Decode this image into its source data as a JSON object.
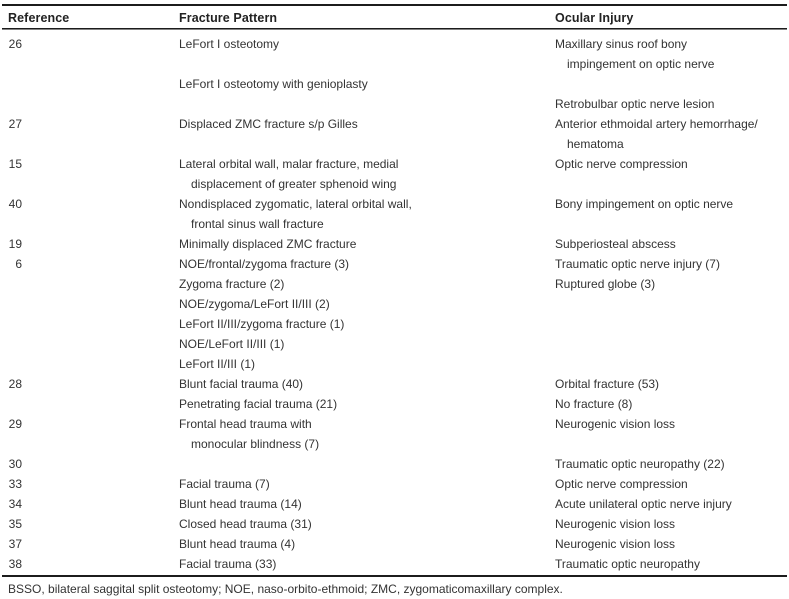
{
  "colors": {
    "background": "#ffffff",
    "text": "#333333",
    "rule": "#1c1c1c"
  },
  "table": {
    "columns": [
      "Reference",
      "Fracture Pattern",
      "Ocular Injury"
    ],
    "rows": [
      {
        "ref": "26",
        "fracture": "LeFort I osteotomy",
        "fracture_indent": false,
        "ocular": "Maxillary sinus roof bony",
        "ocular_indent": false
      },
      {
        "ref": "",
        "fracture": "",
        "fracture_indent": false,
        "ocular": "impingement on optic nerve",
        "ocular_indent": true
      },
      {
        "ref": "",
        "fracture": "LeFort I osteotomy with genioplasty",
        "fracture_indent": false,
        "ocular": "",
        "ocular_indent": false
      },
      {
        "ref": "",
        "fracture": "",
        "fracture_indent": false,
        "ocular": "Retrobulbar optic nerve lesion",
        "ocular_indent": false
      },
      {
        "ref": "27",
        "fracture": "Displaced ZMC fracture s/p Gilles",
        "fracture_indent": false,
        "ocular": "Anterior ethmoidal artery hemorrhage/",
        "ocular_indent": false
      },
      {
        "ref": "",
        "fracture": "",
        "fracture_indent": false,
        "ocular": "hematoma",
        "ocular_indent": true
      },
      {
        "ref": "15",
        "fracture": "Lateral orbital wall, malar fracture, medial",
        "fracture_indent": false,
        "ocular": "Optic nerve compression",
        "ocular_indent": false
      },
      {
        "ref": "",
        "fracture": "displacement of greater sphenoid wing",
        "fracture_indent": true,
        "ocular": "",
        "ocular_indent": false
      },
      {
        "ref": "40",
        "fracture": "Nondisplaced zygomatic, lateral orbital wall,",
        "fracture_indent": false,
        "ocular": "Bony impingement on optic nerve",
        "ocular_indent": false
      },
      {
        "ref": "",
        "fracture": "frontal sinus wall fracture",
        "fracture_indent": true,
        "ocular": "",
        "ocular_indent": false
      },
      {
        "ref": "19",
        "fracture": "Minimally displaced ZMC fracture",
        "fracture_indent": false,
        "ocular": "Subperiosteal abscess",
        "ocular_indent": false
      },
      {
        "ref": "6",
        "fracture": "NOE/frontal/zygoma fracture (3)",
        "fracture_indent": false,
        "ocular": "Traumatic optic nerve injury (7)",
        "ocular_indent": false
      },
      {
        "ref": "",
        "fracture": "Zygoma fracture (2)",
        "fracture_indent": false,
        "ocular": "Ruptured globe (3)",
        "ocular_indent": false
      },
      {
        "ref": "",
        "fracture": "NOE/zygoma/LeFort II/III (2)",
        "fracture_indent": false,
        "ocular": "",
        "ocular_indent": false
      },
      {
        "ref": "",
        "fracture": "LeFort II/III/zygoma fracture (1)",
        "fracture_indent": false,
        "ocular": "",
        "ocular_indent": false
      },
      {
        "ref": "",
        "fracture": "NOE/LeFort II/III (1)",
        "fracture_indent": false,
        "ocular": "",
        "ocular_indent": false
      },
      {
        "ref": "",
        "fracture": "LeFort II/III (1)",
        "fracture_indent": false,
        "ocular": "",
        "ocular_indent": false
      },
      {
        "ref": "28",
        "fracture": "Blunt facial trauma (40)",
        "fracture_indent": false,
        "ocular": "Orbital fracture (53)",
        "ocular_indent": false
      },
      {
        "ref": "",
        "fracture": "Penetrating facial trauma (21)",
        "fracture_indent": false,
        "ocular": "No fracture (8)",
        "ocular_indent": false
      },
      {
        "ref": "29",
        "fracture": "Frontal head trauma with",
        "fracture_indent": false,
        "ocular": "Neurogenic vision loss",
        "ocular_indent": false
      },
      {
        "ref": "",
        "fracture": "monocular blindness (7)",
        "fracture_indent": true,
        "ocular": "",
        "ocular_indent": false
      },
      {
        "ref": "30",
        "fracture": "",
        "fracture_indent": false,
        "ocular": "Traumatic optic neuropathy (22)",
        "ocular_indent": false
      },
      {
        "ref": "33",
        "fracture": "Facial trauma (7)",
        "fracture_indent": false,
        "ocular": "Optic nerve compression",
        "ocular_indent": false
      },
      {
        "ref": "34",
        "fracture": "Blunt head trauma (14)",
        "fracture_indent": false,
        "ocular": "Acute unilateral optic nerve injury",
        "ocular_indent": false
      },
      {
        "ref": "35",
        "fracture": "Closed head trauma (31)",
        "fracture_indent": false,
        "ocular": "Neurogenic vision loss",
        "ocular_indent": false
      },
      {
        "ref": "37",
        "fracture": "Blunt head trauma (4)",
        "fracture_indent": false,
        "ocular": "Neurogenic vision loss",
        "ocular_indent": false
      },
      {
        "ref": "38",
        "fracture": "Facial trauma (33)",
        "fracture_indent": false,
        "ocular": "Traumatic optic neuropathy",
        "ocular_indent": false
      }
    ],
    "footnote": "BSSO, bilateral saggital split osteotomy; NOE, naso-orbito-ethmoid; ZMC, zygomaticomaxillary complex."
  }
}
